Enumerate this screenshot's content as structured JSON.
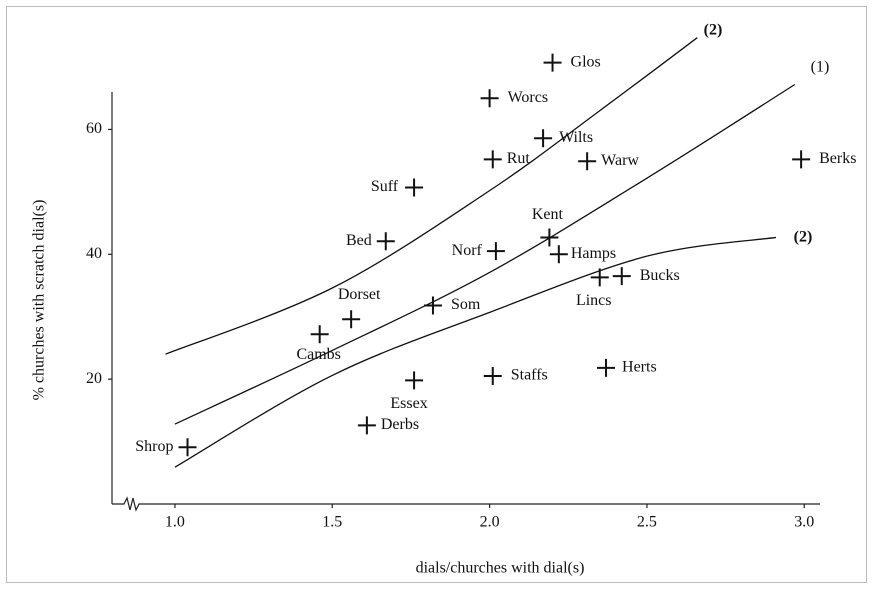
{
  "chart_data": {
    "type": "scatter",
    "x_label": "dials/churches with dial(s)",
    "y_label": "% churches with scratch dial(s)",
    "labels": [
      "Glos",
      "Worcs",
      "Wilts",
      "Rut",
      "Warw",
      "Berks",
      "Suff",
      "Kent",
      "Bed",
      "Norf",
      "Hamps",
      "Lincs",
      "Bucks",
      "Som",
      "Dorset",
      "Cambs",
      "Essex",
      "Staffs",
      "Herts",
      "Derbs",
      "Shrop"
    ],
    "x": [
      2.2,
      2.0,
      2.17,
      2.01,
      2.31,
      2.99,
      1.76,
      2.19,
      1.67,
      2.02,
      2.22,
      2.35,
      2.42,
      1.82,
      1.56,
      1.46,
      1.76,
      2.01,
      2.37,
      1.61,
      1.04
    ],
    "values": [
      70.7,
      65.0,
      58.6,
      55.2,
      54.9,
      55.2,
      50.7,
      42.7,
      42.1,
      40.5,
      40.0,
      36.3,
      36.5,
      31.8,
      29.6,
      27.2,
      19.8,
      20.5,
      21.8,
      12.6,
      9.1
    ],
    "color": "#111111",
    "lines": [
      {
        "name": "(2)",
        "bold": true,
        "x": [
          0.97,
          1.5,
          2.0,
          2.35,
          2.66
        ],
        "values": [
          24.0,
          34.6,
          50.2,
          63.0,
          74.7
        ]
      },
      {
        "name": "(1)",
        "bold": false,
        "x": [
          1.0,
          1.5,
          2.0,
          2.5,
          2.97
        ],
        "values": [
          12.8,
          24.6,
          37.1,
          52.2,
          67.2
        ]
      },
      {
        "name": "(2)",
        "bold": true,
        "x": [
          1.0,
          1.5,
          2.0,
          2.5,
          2.91
        ],
        "values": [
          5.9,
          20.6,
          30.7,
          39.7,
          42.7
        ]
      }
    ],
    "xlim": [
      0.8,
      3.05
    ],
    "ylim": [
      0,
      66
    ],
    "xticks": [
      {
        "value": 1,
        "label": "1.0"
      },
      1.5,
      {
        "value": 2,
        "label": "2.0"
      },
      2.5,
      {
        "value": 3,
        "label": "3.0"
      }
    ],
    "yticks": [
      20,
      40,
      60
    ],
    "grid": false
  }
}
